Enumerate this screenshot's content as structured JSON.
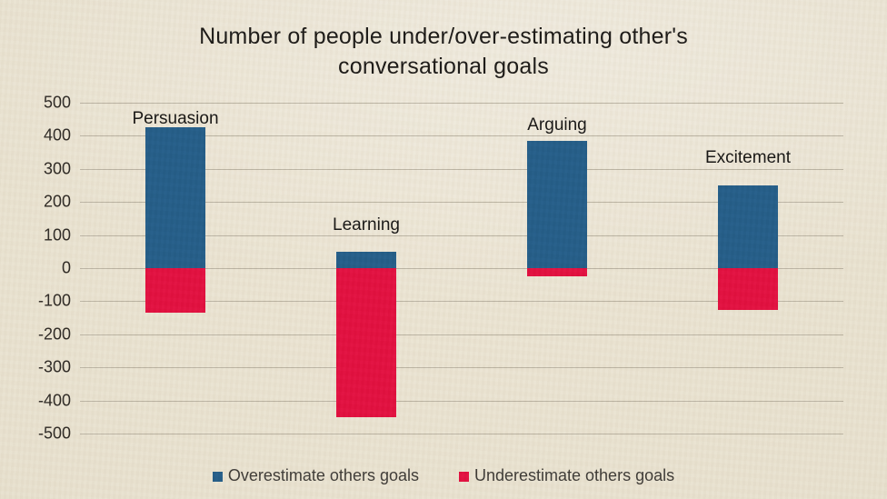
{
  "page": {
    "background_color": "#e8e1cf",
    "gridline_color": "#b2aa9a",
    "title_color": "#171513"
  },
  "chart_data": {
    "type": "bar",
    "subtype": "stacked-diverging-column",
    "title": "Number of people under/over-estimating other's conversational goals",
    "title_lines": [
      "Number of people under/over-estimating other's",
      "conversational goals"
    ],
    "categories": [
      "Persuasion",
      "Learning",
      "Arguing",
      "Excitement"
    ],
    "series": [
      {
        "name": "Overestimate others goals",
        "color": "#1f5a87",
        "values": [
          425,
          50,
          385,
          250
        ]
      },
      {
        "name": "Underestimate others goals",
        "color": "#e20a3c",
        "values": [
          -135,
          -450,
          -25,
          -125
        ]
      }
    ],
    "xlabel": "",
    "ylabel": "",
    "ylim": [
      -500,
      500
    ],
    "yticks": [
      500,
      400,
      300,
      200,
      100,
      0,
      -100,
      -200,
      -300,
      -400,
      -500
    ],
    "grid": true,
    "legend_position": "bottom"
  }
}
